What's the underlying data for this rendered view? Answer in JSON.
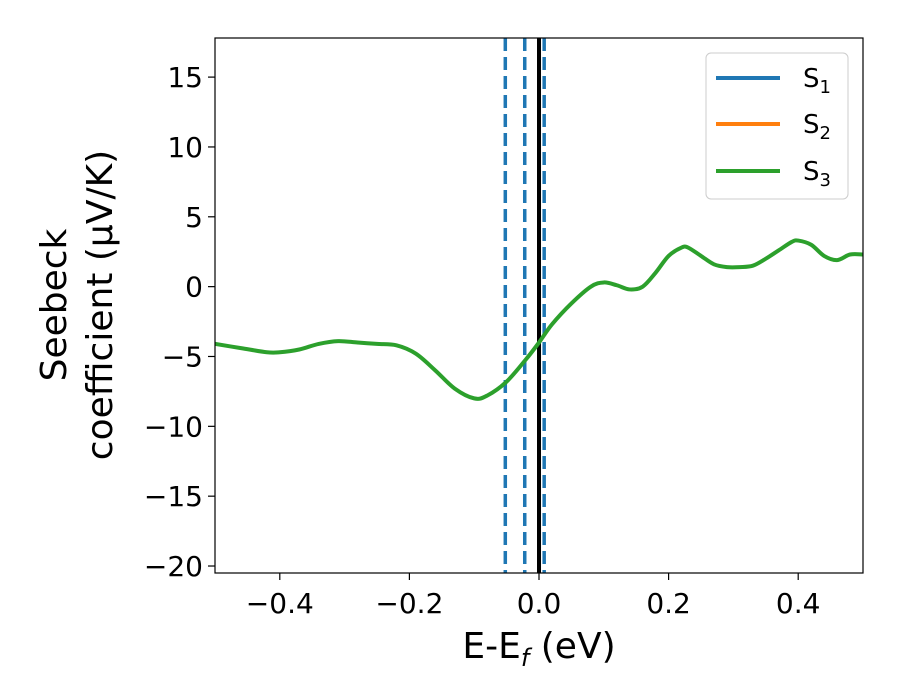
{
  "chart_data": {
    "type": "line",
    "xlabel": {
      "base": "E-E",
      "sub": "f",
      "rest": " (eV)"
    },
    "ylabel": {
      "line1": "Seebeck",
      "line2": "coefficient  (μV/K)"
    },
    "xlim": [
      -0.5,
      0.5
    ],
    "ylim": [
      -20.5,
      17.8
    ],
    "xticks": [
      -0.4,
      -0.2,
      0.0,
      0.2,
      0.4
    ],
    "xtick_labels": [
      "−0.4",
      "−0.2",
      "0.0",
      "0.2",
      "0.4"
    ],
    "yticks": [
      -20,
      -15,
      -10,
      -5,
      0,
      5,
      10,
      15
    ],
    "ytick_labels": [
      "−20",
      "−15",
      "−10",
      "−5",
      "0",
      "5",
      "10",
      "15"
    ],
    "legend_position": "top-right",
    "series": [
      {
        "name": {
          "base": "S",
          "sub": "1"
        },
        "color": "#1f77b4",
        "x": [],
        "y": []
      },
      {
        "name": {
          "base": "S",
          "sub": "2"
        },
        "color": "#ff7f0e",
        "x": [],
        "y": []
      },
      {
        "name": {
          "base": "S",
          "sub": "3"
        },
        "color": "#2ca02c",
        "x": [
          -0.5,
          -0.46,
          -0.42,
          -0.4,
          -0.37,
          -0.34,
          -0.31,
          -0.28,
          -0.25,
          -0.22,
          -0.19,
          -0.16,
          -0.13,
          -0.1,
          -0.08,
          -0.05,
          -0.02,
          0.0,
          0.02,
          0.05,
          0.08,
          0.1,
          0.12,
          0.14,
          0.16,
          0.18,
          0.2,
          0.22,
          0.23,
          0.25,
          0.27,
          0.29,
          0.31,
          0.33,
          0.35,
          0.37,
          0.39,
          0.4,
          0.42,
          0.44,
          0.46,
          0.48,
          0.5
        ],
        "y": [
          -4.1,
          -4.4,
          -4.7,
          -4.7,
          -4.5,
          -4.1,
          -3.9,
          -4.0,
          -4.1,
          -4.2,
          -4.8,
          -6.0,
          -7.3,
          -8.0,
          -7.8,
          -6.8,
          -5.2,
          -4.0,
          -2.7,
          -1.2,
          0.0,
          0.3,
          0.1,
          -0.2,
          0.0,
          1.0,
          2.2,
          2.8,
          2.8,
          2.2,
          1.6,
          1.4,
          1.4,
          1.5,
          2.0,
          2.6,
          3.2,
          3.3,
          3.0,
          2.2,
          1.9,
          2.3,
          2.3
        ]
      }
    ],
    "vlines": [
      {
        "x": -0.052,
        "color": "#1f77b4",
        "style": "dashed"
      },
      {
        "x": -0.022,
        "color": "#1f77b4",
        "style": "dashed"
      },
      {
        "x": 0.008,
        "color": "#1f77b4",
        "style": "dashed"
      },
      {
        "x": 0.0,
        "color": "#000000",
        "style": "solid"
      }
    ]
  }
}
